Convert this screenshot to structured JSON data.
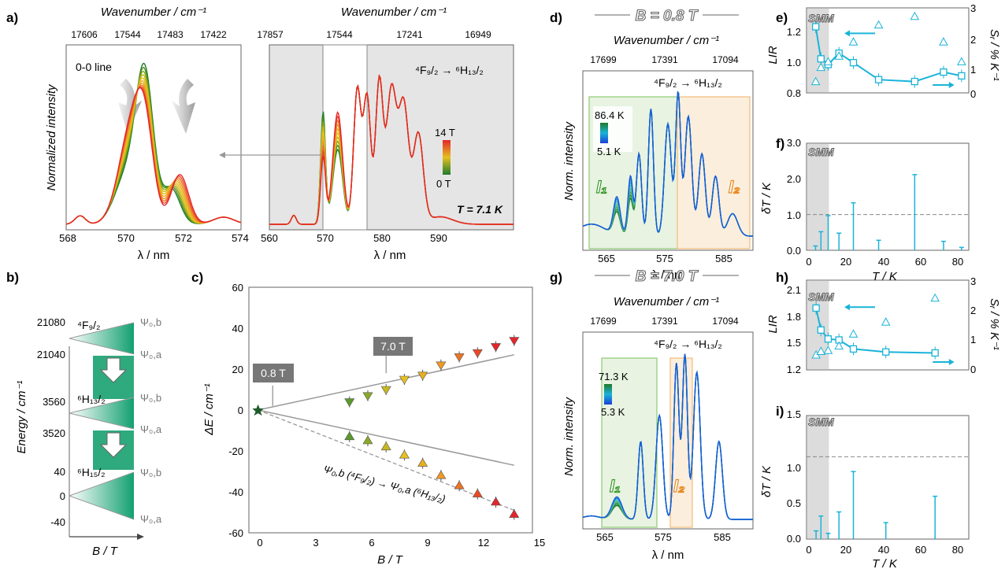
{
  "colors": {
    "tick": "#444444",
    "grid": "#888888",
    "accent": "#1ab3d8",
    "shade": "#dcdcdc",
    "green": "#1e7a2a",
    "orange": "#f0a030",
    "red": "#e3262a",
    "yellow": "#e6c020"
  },
  "panel_a": {
    "label": "a)",
    "left": {
      "top_axis_title": "Wavenumber / cm⁻¹",
      "top_ticks": [
        "17606",
        "17544",
        "17483",
        "17422"
      ],
      "ylabel": "Normalized intensity",
      "inset_label": "0-0 line",
      "x_ticks": [
        "568",
        "570",
        "572",
        "574"
      ],
      "xlabel": "λ / nm"
    },
    "right": {
      "top_axis_title": "Wavenumber / cm⁻¹",
      "top_ticks": [
        "17857",
        "17544",
        "17241",
        "16949"
      ],
      "transition": "⁴F₉/₂ → ⁶H₁₃/₂",
      "legend_max": "14 T",
      "legend_min": "0 T",
      "temperature": "T = 7.1 K",
      "x_ticks": [
        "560",
        "570",
        "580",
        "590"
      ],
      "xlabel": "λ / nm"
    }
  },
  "panel_b": {
    "label": "b)",
    "ylabel": "Energy / cm⁻¹",
    "xlabel": "B / T",
    "y_ticks": [
      "21080",
      "21040",
      "3560",
      "3520",
      "40",
      "0",
      "-40"
    ],
    "levels": [
      "⁴F₉/₂",
      "⁶H₁₃/₂",
      "⁶H₁₅/₂"
    ],
    "psi": [
      "Ψ₀,b",
      "Ψ₀,a",
      "Ψ₀,b",
      "Ψ₀,a",
      "Ψ₀,b",
      "Ψ₀,a"
    ]
  },
  "panel_c": {
    "label": "c)",
    "ylabel": "ΔE / cm⁻¹",
    "xlabel": "B / T",
    "x_ticks": [
      "0",
      "3",
      "6",
      "9",
      "12",
      "15"
    ],
    "y_ticks": [
      "60",
      "40",
      "20",
      "0",
      "-20",
      "-40",
      "-60"
    ],
    "box1": "0.8 T",
    "box2": "7.0 T",
    "annotation": "Ψ₀,b (⁴F₉/₂) → Ψ₀,a (⁶H₁₃/₂)"
  },
  "panel_d": {
    "label": "d)",
    "field": "B = 0.8 T",
    "top_axis_title": "Wavenumber / cm⁻¹",
    "top_ticks": [
      "17699",
      "17391",
      "17094"
    ],
    "transition": "⁴F₉/₂ → ⁶H₁₃/₂",
    "ylabel": "Norm. intensity",
    "legend_max": "86.4 K",
    "legend_min": "5.1 K",
    "region1": "I₁",
    "region2": "I₂",
    "x_ticks": [
      "565",
      "575",
      "585"
    ],
    "xlabel": "λ / nm"
  },
  "panel_g": {
    "label": "g)",
    "field": "B = 7.0 T",
    "top_axis_title": "Wavenumber / cm⁻¹",
    "top_ticks": [
      "17699",
      "17391",
      "17094"
    ],
    "transition": "⁴F₉/₂ → ⁶H₁₃/₂",
    "ylabel": "Norm. intensity",
    "legend_max": "71.3 K",
    "legend_min": "5.3 K",
    "region1": "I₁",
    "region2": "I₂",
    "x_ticks": [
      "565",
      "575",
      "585"
    ],
    "xlabel": "λ / nm"
  },
  "panel_e": {
    "label": "e)",
    "smm": "SMM",
    "ylabel": "LIR",
    "y2label": "Sᵣ / % K⁻¹",
    "y_ticks": [
      "1.2",
      "1.0",
      "0.8"
    ],
    "y2_ticks": [
      "3",
      "2",
      "1",
      "0"
    ]
  },
  "panel_f": {
    "label": "f)",
    "smm": "SMM",
    "ylabel": "δT / K",
    "xlabel": "T / K",
    "y_ticks": [
      "3.0",
      "2.0",
      "1.0",
      "0.0"
    ],
    "x_ticks": [
      "0",
      "20",
      "40",
      "60",
      "80"
    ]
  },
  "panel_h": {
    "label": "h)",
    "smm": "SMM",
    "ylabel": "LIR",
    "y2label": "Sᵣ / % K⁻¹",
    "y_ticks": [
      "2.1",
      "1.8",
      "1.5",
      "1.2"
    ],
    "y2_ticks": [
      "3",
      "2",
      "1",
      "0"
    ]
  },
  "panel_i": {
    "label": "i)",
    "smm": "SMM",
    "ylabel": "δT / K",
    "xlabel": "T / K",
    "y_ticks": [
      "1.5",
      "1.0",
      "0.5",
      "0.0"
    ],
    "x_ticks": [
      "0",
      "20",
      "40",
      "60",
      "80"
    ]
  },
  "chart_data": [
    {
      "type": "scatter",
      "panel": "c",
      "xlabel": "B / T",
      "ylabel": "ΔE / cm⁻¹",
      "xlim": [
        -0.5,
        15
      ],
      "ylim": [
        -60,
        60
      ],
      "series": [
        {
          "x": [
            0,
            5,
            6,
            7,
            8,
            9,
            10,
            11,
            12,
            13,
            14
          ],
          "y": [
            0,
            4,
            7,
            10,
            15,
            17,
            22,
            26,
            28,
            31,
            34
          ]
        },
        {
          "x": [
            0,
            5,
            6,
            7,
            8,
            9,
            10,
            11,
            12,
            13,
            14
          ],
          "y": [
            0,
            -13,
            -15,
            -18,
            -22,
            -26,
            -32,
            -37,
            -41,
            -45,
            -51
          ]
        }
      ]
    },
    {
      "type": "scatter",
      "panel": "e",
      "xlabel": "T / K",
      "ylabel": "LIR",
      "xlim": [
        0,
        90
      ],
      "ylim": [
        0.8,
        1.25
      ],
      "y2lim": [
        0,
        3
      ],
      "series": [
        {
          "x": [
            5.1,
            8,
            12,
            18,
            26,
            40,
            60,
            76,
            86
          ],
          "y": [
            1.15,
            0.98,
            0.95,
            1.01,
            0.96,
            0.87,
            0.86,
            0.91,
            0.89
          ]
        },
        {
          "x": [
            5.1,
            8,
            12,
            18,
            26,
            40,
            60,
            76,
            86
          ],
          "y": [
            0.4,
            0.9,
            1.1,
            1.3,
            1.8,
            2.4,
            2.7,
            1.8,
            1.1
          ]
        }
      ]
    },
    {
      "type": "bar",
      "panel": "f",
      "xlabel": "T / K",
      "ylabel": "δT / K",
      "ylim": [
        0,
        3
      ],
      "x": [
        5,
        8,
        12,
        18,
        26,
        40,
        60,
        76,
        86
      ],
      "values": [
        0.12,
        0.52,
        0.97,
        0.48,
        1.33,
        0.28,
        2.12,
        0.25,
        0.08
      ]
    },
    {
      "type": "scatter",
      "panel": "h",
      "xlabel": "T / K",
      "ylabel": "LIR",
      "xlim": [
        0,
        90
      ],
      "ylim": [
        1.2,
        2.1
      ],
      "y2lim": [
        0,
        3
      ],
      "series": [
        {
          "x": [
            5.3,
            8,
            12,
            18,
            26,
            44,
            71.3
          ],
          "y": [
            1.82,
            1.6,
            1.51,
            1.5,
            1.41,
            1.38,
            1.37
          ]
        },
        {
          "x": [
            5.3,
            8,
            12,
            18,
            26,
            44,
            71.3
          ],
          "y": [
            0.5,
            0.62,
            0.65,
            0.8,
            1.2,
            1.6,
            2.4
          ]
        }
      ]
    },
    {
      "type": "bar",
      "panel": "i",
      "xlabel": "T / K",
      "ylabel": "δT / K",
      "ylim": [
        0,
        1.5
      ],
      "x": [
        5.3,
        8,
        12,
        18,
        26,
        44,
        71.3
      ],
      "values": [
        0.1,
        0.28,
        0.07,
        0.33,
        0.82,
        0.2,
        0.52
      ]
    }
  ]
}
